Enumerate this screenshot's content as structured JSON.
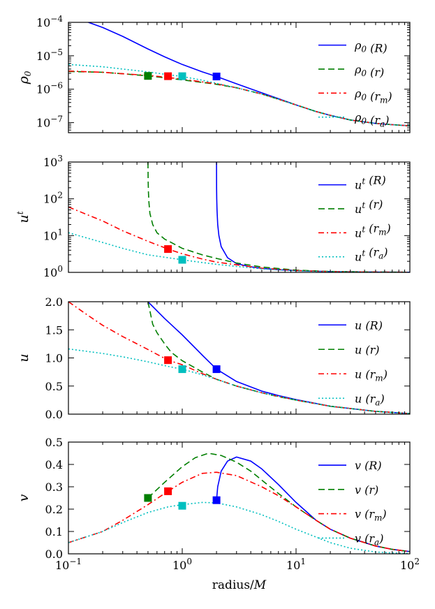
{
  "chart_data": {
    "type": "line",
    "xscale": "log",
    "xlim": [
      0.1,
      100
    ],
    "xlabel": "radius/M",
    "x_tick_labels": [
      "10^-1",
      "10^0",
      "10^1",
      "10^2"
    ],
    "colors": {
      "R": "#0000ff",
      "r": "#007f00",
      "r_m": "#ff0000",
      "r_a": "#00bfbf"
    },
    "panels": [
      {
        "name": "rho0",
        "ylabel": "ρ0",
        "yscale": "log",
        "ylim": [
          5e-08,
          0.0001
        ],
        "y_tick_labels": [
          "10^-7",
          "10^-6",
          "10^-5",
          "10^-4"
        ],
        "series": [
          {
            "key": "R",
            "label": "ρ0 (R)",
            "style": "solid",
            "x": [
              0.1,
              0.15,
              0.2,
              0.3,
              0.5,
              0.7,
              1,
              1.5,
              2,
              3,
              5,
              7,
              10,
              15,
              20,
              30,
              50,
              70,
              100
            ],
            "y": [
              0.00015,
              0.0001,
              7e-05,
              3.8e-05,
              1.6e-05,
              9.3e-06,
              5.5e-06,
              3.3e-06,
              2.4e-06,
              1.45e-06,
              7.8e-07,
              5.2e-07,
              3.4e-07,
              2.15e-07,
              1.65e-07,
              1.2e-07,
              9.5e-08,
              8.7e-08,
              8e-08
            ]
          },
          {
            "key": "r",
            "label": "ρ0 (r)",
            "style": "dashed",
            "x": [
              0.1,
              0.2,
              0.3,
              0.5,
              0.7,
              1,
              1.5,
              2,
              3,
              5,
              7,
              10,
              15,
              20,
              30,
              50,
              70,
              100
            ],
            "y": [
              3.4e-06,
              3.2e-06,
              2.9e-06,
              2.5e-06,
              2.2e-06,
              1.9e-06,
              1.6e-06,
              1.4e-06,
              1.1e-06,
              7.2e-07,
              5e-07,
              3.4e-07,
              2.15e-07,
              1.65e-07,
              1.2e-07,
              9.5e-08,
              8.7e-08,
              8e-08
            ]
          },
          {
            "key": "r_m",
            "label": "ρ0 (rm)",
            "style": "dashdot",
            "x": [
              0.1,
              0.2,
              0.3,
              0.5,
              0.7,
              1,
              1.5,
              2,
              3,
              5,
              7,
              10,
              15,
              20,
              30,
              50,
              70,
              100
            ],
            "y": [
              3.5e-06,
              3.2e-06,
              2.9e-06,
              2.6e-06,
              2.3e-06,
              2e-06,
              1.65e-06,
              1.45e-06,
              1.1e-06,
              7.2e-07,
              5e-07,
              3.4e-07,
              2.15e-07,
              1.65e-07,
              1.2e-07,
              9.5e-08,
              8.7e-08,
              8e-08
            ]
          },
          {
            "key": "r_a",
            "label": "ρ0 (ra)",
            "style": "dotted",
            "x": [
              0.1,
              0.2,
              0.3,
              0.5,
              0.7,
              1,
              1.5,
              2,
              3,
              5,
              7,
              10,
              15,
              20,
              30,
              50,
              70,
              100
            ],
            "y": [
              5.5e-06,
              4.7e-06,
              4e-06,
              3.3e-06,
              2.8e-06,
              2.4e-06,
              1.85e-06,
              1.5e-06,
              1.1e-06,
              7.2e-07,
              5e-07,
              3.4e-07,
              2.15e-07,
              1.65e-07,
              1.2e-07,
              9.5e-08,
              8.7e-08,
              8e-08
            ]
          }
        ],
        "markers": [
          {
            "key": "R",
            "x": 2.0,
            "y": 2.4e-06
          },
          {
            "key": "r",
            "x": 0.5,
            "y": 2.5e-06
          },
          {
            "key": "r_m",
            "x": 0.75,
            "y": 2.45e-06
          },
          {
            "key": "r_a",
            "x": 1.0,
            "y": 2.45e-06
          }
        ]
      },
      {
        "name": "ut",
        "ylabel": "ut",
        "yscale": "log",
        "ylim": [
          1,
          1000
        ],
        "y_tick_labels": [
          "10^0",
          "10^1",
          "10^2",
          "10^3"
        ],
        "series": [
          {
            "key": "R",
            "label": "ut (R)",
            "style": "solid",
            "x": [
              2.0,
              2.005,
              2.01,
              2.02,
              2.05,
              2.1,
              2.2,
              2.5,
              3,
              4,
              5,
              7,
              10,
              20,
              50,
              100
            ],
            "y": [
              1000,
              200,
              100,
              50,
              20,
              10,
              5,
              2.5,
              1.73,
              1.41,
              1.29,
              1.18,
              1.12,
              1.05,
              1.02,
              1.01
            ]
          },
          {
            "key": "r",
            "label": "ut (r)",
            "style": "dashed",
            "x": [
              0.5,
              0.502,
              0.505,
              0.51,
              0.52,
              0.55,
              0.6,
              0.7,
              0.8,
              1,
              1.5,
              2,
              3,
              5,
              10,
              20,
              50,
              100
            ],
            "y": [
              1000,
              300,
              150,
              80,
              40,
              20,
              12,
              8,
              6.5,
              4.5,
              3,
              2.4,
              1.8,
              1.4,
              1.15,
              1.06,
              1.02,
              1.01
            ]
          },
          {
            "key": "r_m",
            "label": "ut (rm)",
            "style": "dashdot",
            "x": [
              0.1,
              0.2,
              0.3,
              0.5,
              0.75,
              1,
              1.5,
              2,
              3,
              5,
              10,
              20,
              50,
              100
            ],
            "y": [
              60,
              25,
              13.5,
              7,
              4.3,
              3.2,
              2.3,
              1.9,
              1.6,
              1.3,
              1.12,
              1.05,
              1.02,
              1.01
            ]
          },
          {
            "key": "r_a",
            "label": "ut (ra)",
            "style": "dotted",
            "x": [
              0.1,
              0.2,
              0.3,
              0.5,
              0.75,
              1,
              1.5,
              2,
              3,
              5,
              10,
              20,
              50,
              100
            ],
            "y": [
              12,
              6.5,
              4.5,
              3,
              2.5,
              2.2,
              1.85,
              1.65,
              1.45,
              1.25,
              1.1,
              1.04,
              1.01,
              1.0
            ]
          }
        ],
        "markers": [
          {
            "key": "r_m",
            "x": 0.75,
            "y": 4.3
          },
          {
            "key": "r_a",
            "x": 1.0,
            "y": 2.2
          }
        ]
      },
      {
        "name": "u",
        "ylabel": "u",
        "yscale": "linear",
        "ylim": [
          0,
          2
        ],
        "y_tick_labels": [
          "0.0",
          "0.5",
          "1.0",
          "1.5",
          "2.0"
        ],
        "series": [
          {
            "key": "R",
            "label": "u (R)",
            "style": "solid",
            "x": [
              0.5,
              0.7,
              1,
              1.5,
              2,
              3,
              5,
              7,
              10,
              20,
              50,
              100
            ],
            "y": [
              2.0,
              1.7,
              1.41,
              1.05,
              0.8,
              0.58,
              0.41,
              0.33,
              0.26,
              0.14,
              0.05,
              0.01
            ]
          },
          {
            "key": "r",
            "label": "u (r)",
            "style": "dashed",
            "x": [
              0.5,
              0.55,
              0.6,
              0.7,
              0.8,
              1,
              1.5,
              2,
              3,
              5,
              7,
              10,
              20,
              50,
              100
            ],
            "y": [
              2.0,
              1.6,
              1.45,
              1.25,
              1.1,
              0.95,
              0.75,
              0.62,
              0.5,
              0.38,
              0.31,
              0.25,
              0.14,
              0.05,
              0.01
            ]
          },
          {
            "key": "r_m",
            "label": "u (rm)",
            "style": "dashdot",
            "x": [
              0.1,
              0.15,
              0.2,
              0.3,
              0.5,
              0.75,
              1,
              1.5,
              2,
              3,
              5,
              10,
              20,
              50,
              100
            ],
            "y": [
              2.0,
              1.75,
              1.58,
              1.38,
              1.15,
              0.96,
              0.88,
              0.72,
              0.62,
              0.5,
              0.38,
              0.25,
              0.14,
              0.05,
              0.01
            ]
          },
          {
            "key": "r_a",
            "label": "u (ra)",
            "style": "dotted",
            "x": [
              0.1,
              0.2,
              0.3,
              0.5,
              0.75,
              1,
              1.5,
              2,
              3,
              5,
              10,
              20,
              50,
              100
            ],
            "y": [
              1.16,
              1.08,
              1.02,
              0.93,
              0.85,
              0.8,
              0.7,
              0.62,
              0.5,
              0.38,
              0.25,
              0.14,
              0.05,
              0.01
            ]
          }
        ],
        "markers": [
          {
            "key": "R",
            "x": 2.0,
            "y": 0.8
          },
          {
            "key": "r_m",
            "x": 0.75,
            "y": 0.96
          },
          {
            "key": "r_a",
            "x": 1.0,
            "y": 0.8
          }
        ]
      },
      {
        "name": "v",
        "ylabel": "v",
        "yscale": "linear",
        "ylim": [
          0,
          0.5
        ],
        "y_tick_labels": [
          "0.0",
          "0.1",
          "0.2",
          "0.3",
          "0.4",
          "0.5"
        ],
        "series": [
          {
            "key": "R",
            "label": "v (R)",
            "style": "solid",
            "x": [
              2.0,
              2.05,
              2.2,
              2.5,
              3,
              4,
              5,
              7,
              10,
              15,
              20,
              30,
              50,
              70,
              100
            ],
            "y": [
              0.24,
              0.3,
              0.37,
              0.415,
              0.433,
              0.415,
              0.38,
              0.31,
              0.23,
              0.15,
              0.11,
              0.07,
              0.035,
              0.02,
              0.01
            ]
          },
          {
            "key": "r",
            "label": "v (r)",
            "style": "dashed",
            "x": [
              0.5,
              0.7,
              1,
              1.3,
              1.7,
              2.2,
              3,
              4,
              5,
              7,
              10,
              15,
              20,
              30,
              50,
              70,
              100
            ],
            "y": [
              0.25,
              0.32,
              0.39,
              0.43,
              0.45,
              0.44,
              0.41,
              0.37,
              0.33,
              0.27,
              0.21,
              0.15,
              0.11,
              0.07,
              0.035,
              0.02,
              0.01
            ]
          },
          {
            "key": "r_m",
            "label": "v (rm)",
            "style": "dashdot",
            "x": [
              0.1,
              0.2,
              0.3,
              0.5,
              0.75,
              1,
              1.5,
              2,
              3,
              5,
              7,
              10,
              15,
              20,
              30,
              50,
              70,
              100
            ],
            "y": [
              0.05,
              0.1,
              0.15,
              0.22,
              0.28,
              0.32,
              0.36,
              0.365,
              0.35,
              0.3,
              0.26,
              0.21,
              0.15,
              0.11,
              0.07,
              0.035,
              0.02,
              0.01
            ]
          },
          {
            "key": "r_a",
            "label": "v (ra)",
            "style": "dotted",
            "x": [
              0.1,
              0.2,
              0.3,
              0.5,
              0.75,
              1,
              1.5,
              2,
              3,
              5,
              7,
              10,
              15,
              20,
              30,
              50,
              70,
              100
            ],
            "y": [
              0.05,
              0.1,
              0.14,
              0.185,
              0.21,
              0.22,
              0.23,
              0.228,
              0.21,
              0.175,
              0.145,
              0.11,
              0.075,
              0.05,
              0.025,
              0.008,
              0.004,
              0.002
            ]
          }
        ],
        "markers": [
          {
            "key": "R",
            "x": 2.0,
            "y": 0.24
          },
          {
            "key": "r",
            "x": 0.5,
            "y": 0.25
          },
          {
            "key": "r_m",
            "x": 0.75,
            "y": 0.28
          },
          {
            "key": "r_a",
            "x": 1.0,
            "y": 0.215
          }
        ]
      }
    ]
  }
}
